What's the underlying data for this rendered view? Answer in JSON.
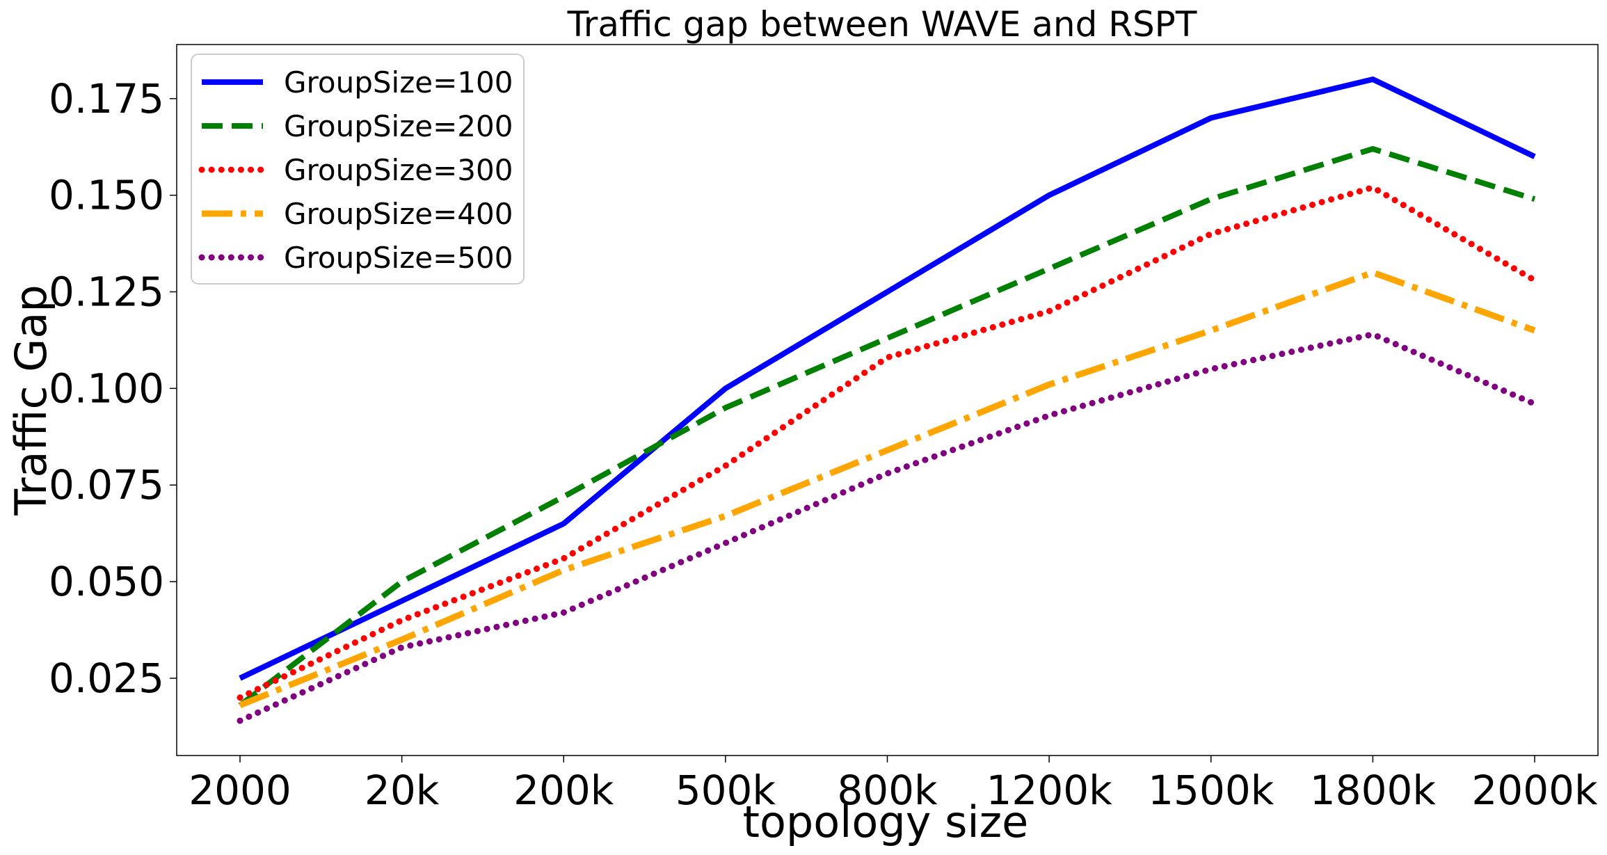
{
  "chart_data": {
    "type": "line",
    "title": "Traffic gap between WAVE and RSPT",
    "xlabel": "topology size",
    "ylabel": "Traffic Gap",
    "categories": [
      "2000",
      "20k",
      "200k",
      "500k",
      "800k",
      "1200k",
      "1500k",
      "1800k",
      "2000k"
    ],
    "yticks": [
      "0.025",
      "0.050",
      "0.075",
      "0.100",
      "0.125",
      "0.150",
      "0.175"
    ],
    "ytick_values": [
      0.025,
      0.05,
      0.075,
      0.1,
      0.125,
      0.15,
      0.175
    ],
    "ylim": [
      0.005,
      0.189
    ],
    "grid": false,
    "legend_position": "top-left",
    "series": [
      {
        "name": "GroupSize=100",
        "color": "#0000ff",
        "style": "solid",
        "values": [
          0.025,
          0.045,
          0.065,
          0.1,
          0.125,
          0.15,
          0.17,
          0.18,
          0.16
        ]
      },
      {
        "name": "GroupSize=200",
        "color": "#008000",
        "style": "dashed",
        "values": [
          0.018,
          0.05,
          0.072,
          0.095,
          0.113,
          0.131,
          0.149,
          0.162,
          0.149
        ]
      },
      {
        "name": "GroupSize=300",
        "color": "#ff0000",
        "style": "dotted",
        "values": [
          0.02,
          0.04,
          0.056,
          0.08,
          0.108,
          0.12,
          0.14,
          0.152,
          0.128
        ]
      },
      {
        "name": "GroupSize=400",
        "color": "#ffa500",
        "style": "dashdot",
        "values": [
          0.018,
          0.035,
          0.053,
          0.067,
          0.084,
          0.101,
          0.115,
          0.13,
          0.115
        ]
      },
      {
        "name": "GroupSize=500",
        "color": "#800080",
        "style": "dotted",
        "values": [
          0.014,
          0.033,
          0.042,
          0.06,
          0.078,
          0.093,
          0.105,
          0.114,
          0.096
        ]
      }
    ]
  }
}
